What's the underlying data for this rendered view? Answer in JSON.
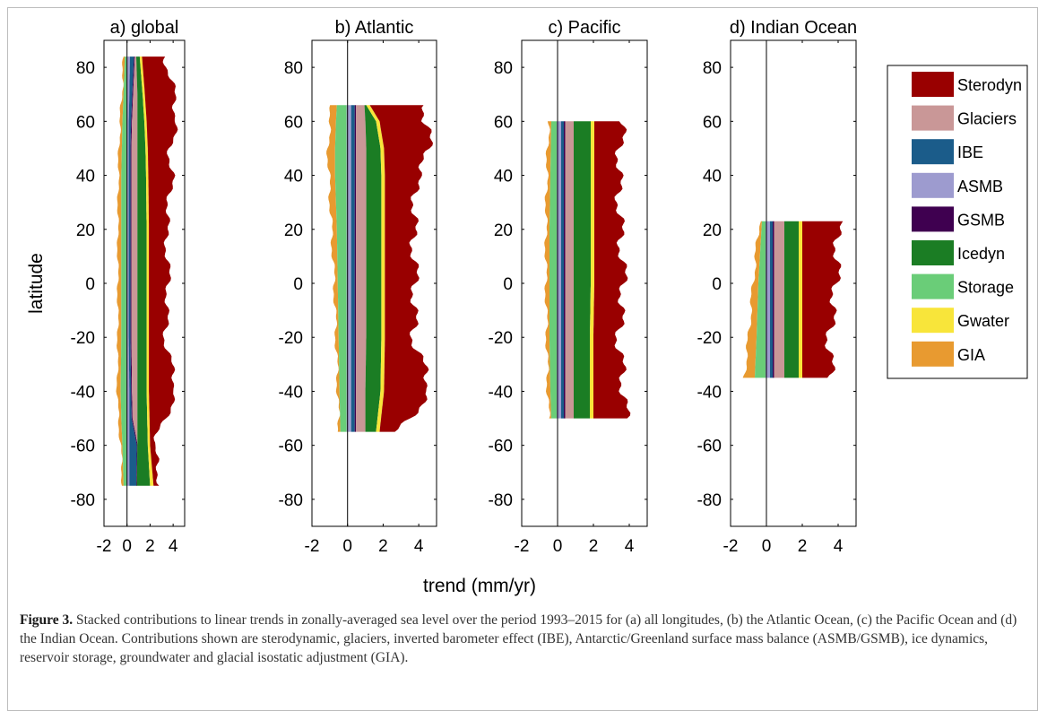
{
  "chart_data": {
    "type": "area",
    "orientation": "horizontal-stacked",
    "x_label": "trend (mm/yr)",
    "y_label": "latitude",
    "xlim": [
      -2,
      5
    ],
    "ylim": [
      -90,
      90
    ],
    "x_ticks": [
      -2,
      0,
      2,
      4
    ],
    "y_ticks": [
      80,
      60,
      40,
      20,
      0,
      -20,
      -40,
      -60,
      -80
    ],
    "legend_position": "right",
    "components": [
      {
        "name": "Sterodyn",
        "color": "#990000"
      },
      {
        "name": "Glaciers",
        "color": "#c99797"
      },
      {
        "name": "IBE",
        "color": "#1b5c8a"
      },
      {
        "name": "ASMB",
        "color": "#9d9bcf"
      },
      {
        "name": "GSMB",
        "color": "#3f0050"
      },
      {
        "name": "Icedyn",
        "color": "#1b7d24"
      },
      {
        "name": "Storage",
        "color": "#6acd78"
      },
      {
        "name": "Gwater",
        "color": "#f8e53a"
      },
      {
        "name": "GIA",
        "color": "#e89a30"
      }
    ],
    "panels": [
      {
        "title": "a) global",
        "lat_range": [
          -75,
          84
        ],
        "profile": [
          {
            "lat": 84,
            "gia": -0.3,
            "storage": -0.2,
            "asmb": 0.25,
            "gsmb": 0.35,
            "ibe": 0.6,
            "glaciers": 0.8,
            "icedyn": 1.1,
            "gwater": 1.3,
            "total": 3.3
          },
          {
            "lat": 70,
            "gia": -0.45,
            "storage": -0.3,
            "asmb": 0.2,
            "gsmb": 0.3,
            "ibe": 0.45,
            "glaciers": 0.9,
            "icedyn": 1.35,
            "gwater": 1.55,
            "total": 4.1
          },
          {
            "lat": 60,
            "gia": -0.6,
            "storage": -0.4,
            "asmb": 0.15,
            "gsmb": 0.25,
            "ibe": 0.35,
            "glaciers": 0.9,
            "icedyn": 1.5,
            "gwater": 1.7,
            "total": 4.3
          },
          {
            "lat": 50,
            "gia": -0.7,
            "storage": -0.45,
            "asmb": 0.15,
            "gsmb": 0.25,
            "ibe": 0.3,
            "glaciers": 0.9,
            "icedyn": 1.6,
            "gwater": 1.8,
            "total": 3.7
          },
          {
            "lat": 40,
            "gia": -0.75,
            "storage": -0.5,
            "asmb": 0.15,
            "gsmb": 0.25,
            "ibe": 0.3,
            "glaciers": 0.9,
            "icedyn": 1.65,
            "gwater": 1.85,
            "total": 3.9
          },
          {
            "lat": 20,
            "gia": -0.8,
            "storage": -0.5,
            "asmb": 0.15,
            "gsmb": 0.25,
            "ibe": 0.3,
            "glaciers": 0.9,
            "icedyn": 1.7,
            "gwater": 1.9,
            "total": 3.4
          },
          {
            "lat": 0,
            "gia": -0.8,
            "storage": -0.5,
            "asmb": 0.15,
            "gsmb": 0.25,
            "ibe": 0.3,
            "glaciers": 0.9,
            "icedyn": 1.7,
            "gwater": 1.9,
            "total": 3.6
          },
          {
            "lat": -20,
            "gia": -0.8,
            "storage": -0.5,
            "asmb": 0.15,
            "gsmb": 0.25,
            "ibe": 0.3,
            "glaciers": 0.9,
            "icedyn": 1.7,
            "gwater": 1.9,
            "total": 3.3
          },
          {
            "lat": -40,
            "gia": -0.85,
            "storage": -0.55,
            "asmb": 0.2,
            "gsmb": 0.3,
            "ibe": 0.35,
            "glaciers": 0.9,
            "icedyn": 1.7,
            "gwater": 1.9,
            "total": 4.3
          },
          {
            "lat": -50,
            "gia": -0.75,
            "storage": -0.5,
            "asmb": 0.2,
            "gsmb": 0.3,
            "ibe": 0.4,
            "glaciers": 0.9,
            "icedyn": 1.75,
            "gwater": 1.95,
            "total": 3.3
          },
          {
            "lat": -60,
            "gia": -0.55,
            "storage": -0.4,
            "asmb": 0.2,
            "gsmb": 0.3,
            "ibe": 0.85,
            "glaciers": 0.9,
            "icedyn": 1.8,
            "gwater": 2.0,
            "total": 2.3
          },
          {
            "lat": -75,
            "gia": -0.4,
            "storage": -0.3,
            "asmb": 0.2,
            "gsmb": 0.3,
            "ibe": 0.8,
            "glaciers": 0.85,
            "icedyn": 2.0,
            "gwater": 2.3,
            "total": 2.9
          }
        ]
      },
      {
        "title": "b) Atlantic",
        "lat_range": [
          -55,
          66
        ],
        "profile": [
          {
            "lat": 66,
            "gia": -0.9,
            "storage": -0.6,
            "asmb": 0.2,
            "gsmb": 0.3,
            "ibe": 0.4,
            "glaciers": 0.95,
            "icedyn": 1.05,
            "gwater": 1.25,
            "total": 4.5
          },
          {
            "lat": 60,
            "gia": -1.0,
            "storage": -0.65,
            "asmb": 0.2,
            "gsmb": 0.3,
            "ibe": 0.4,
            "glaciers": 1.0,
            "icedyn": 1.6,
            "gwater": 1.8,
            "total": 4.3
          },
          {
            "lat": 50,
            "gia": -1.1,
            "storage": -0.7,
            "asmb": 0.2,
            "gsmb": 0.3,
            "ibe": 0.4,
            "glaciers": 1.05,
            "icedyn": 1.85,
            "gwater": 2.05,
            "total": 4.7
          },
          {
            "lat": 40,
            "gia": -1.05,
            "storage": -0.7,
            "asmb": 0.2,
            "gsmb": 0.3,
            "ibe": 0.4,
            "glaciers": 1.05,
            "icedyn": 1.9,
            "gwater": 2.1,
            "total": 3.9
          },
          {
            "lat": 20,
            "gia": -0.9,
            "storage": -0.6,
            "asmb": 0.2,
            "gsmb": 0.3,
            "ibe": 0.4,
            "glaciers": 1.05,
            "icedyn": 1.9,
            "gwater": 2.1,
            "total": 3.7
          },
          {
            "lat": 0,
            "gia": -0.75,
            "storage": -0.55,
            "asmb": 0.2,
            "gsmb": 0.3,
            "ibe": 0.4,
            "glaciers": 1.05,
            "icedyn": 1.9,
            "gwater": 2.1,
            "total": 3.8
          },
          {
            "lat": -20,
            "gia": -0.65,
            "storage": -0.5,
            "asmb": 0.2,
            "gsmb": 0.3,
            "ibe": 0.4,
            "glaciers": 1.05,
            "icedyn": 1.9,
            "gwater": 2.1,
            "total": 3.7
          },
          {
            "lat": -40,
            "gia": -0.55,
            "storage": -0.45,
            "asmb": 0.2,
            "gsmb": 0.3,
            "ibe": 0.4,
            "glaciers": 1.0,
            "icedyn": 1.85,
            "gwater": 2.05,
            "total": 4.7
          },
          {
            "lat": -55,
            "gia": -0.5,
            "storage": -0.4,
            "asmb": 0.2,
            "gsmb": 0.3,
            "ibe": 0.4,
            "glaciers": 1.0,
            "icedyn": 1.6,
            "gwater": 1.8,
            "total": 2.8
          }
        ]
      },
      {
        "title": "c) Pacific",
        "lat_range": [
          -50,
          60
        ],
        "profile": [
          {
            "lat": 60,
            "gia": -0.5,
            "storage": -0.35,
            "asmb": 0.2,
            "gsmb": 0.3,
            "ibe": 0.35,
            "glaciers": 0.9,
            "icedyn": 1.85,
            "gwater": 2.05,
            "total": 3.6
          },
          {
            "lat": 40,
            "gia": -0.6,
            "storage": -0.4,
            "asmb": 0.2,
            "gsmb": 0.3,
            "ibe": 0.35,
            "glaciers": 0.9,
            "icedyn": 1.85,
            "gwater": 2.05,
            "total": 3.4
          },
          {
            "lat": 20,
            "gia": -0.65,
            "storage": -0.45,
            "asmb": 0.2,
            "gsmb": 0.3,
            "ibe": 0.35,
            "glaciers": 0.9,
            "icedyn": 1.85,
            "gwater": 2.05,
            "total": 3.5
          },
          {
            "lat": 0,
            "gia": -0.65,
            "storage": -0.45,
            "asmb": 0.2,
            "gsmb": 0.3,
            "ibe": 0.35,
            "glaciers": 0.9,
            "icedyn": 1.85,
            "gwater": 2.05,
            "total": 3.7
          },
          {
            "lat": -20,
            "gia": -0.6,
            "storage": -0.45,
            "asmb": 0.2,
            "gsmb": 0.3,
            "ibe": 0.35,
            "glaciers": 0.9,
            "icedyn": 1.8,
            "gwater": 2.0,
            "total": 3.4
          },
          {
            "lat": -40,
            "gia": -0.55,
            "storage": -0.4,
            "asmb": 0.2,
            "gsmb": 0.3,
            "ibe": 0.35,
            "glaciers": 0.9,
            "icedyn": 1.8,
            "gwater": 2.0,
            "total": 3.7
          },
          {
            "lat": -50,
            "gia": -0.5,
            "storage": -0.35,
            "asmb": 0.2,
            "gsmb": 0.3,
            "ibe": 0.35,
            "glaciers": 0.9,
            "icedyn": 1.8,
            "gwater": 2.0,
            "total": 3.8
          }
        ]
      },
      {
        "title": "d) Indian Ocean",
        "lat_range": [
          -35,
          23
        ],
        "profile": [
          {
            "lat": 23,
            "gia": -0.4,
            "storage": -0.25,
            "asmb": 0.2,
            "gsmb": 0.3,
            "ibe": 0.35,
            "glaciers": 1.0,
            "icedyn": 1.8,
            "gwater": 2.0,
            "total": 4.0
          },
          {
            "lat": 0,
            "gia": -0.75,
            "storage": -0.45,
            "asmb": 0.2,
            "gsmb": 0.3,
            "ibe": 0.35,
            "glaciers": 1.0,
            "icedyn": 1.8,
            "gwater": 2.0,
            "total": 3.9
          },
          {
            "lat": -20,
            "gia": -1.0,
            "storage": -0.55,
            "asmb": 0.2,
            "gsmb": 0.3,
            "ibe": 0.35,
            "glaciers": 1.0,
            "icedyn": 1.8,
            "gwater": 2.0,
            "total": 3.5
          },
          {
            "lat": -35,
            "gia": -1.25,
            "storage": -0.65,
            "asmb": 0.2,
            "gsmb": 0.3,
            "ibe": 0.35,
            "glaciers": 1.0,
            "icedyn": 1.8,
            "gwater": 2.0,
            "total": 3.6
          }
        ]
      }
    ]
  },
  "caption": {
    "label": "Figure 3.",
    "text": " Stacked contributions to linear trends in zonally-averaged sea level over the period 1993–2015 for (a) all longitudes, (b) the Atlantic Ocean, (c) the Pacific Ocean and (d) the Indian Ocean. Contributions shown are sterodynamic, glaciers, inverted barometer effect (IBE), Antarctic/Greenland surface mass balance (ASMB/GSMB), ice dynamics, reservoir storage, groundwater and glacial isostatic adjustment (GIA)."
  }
}
